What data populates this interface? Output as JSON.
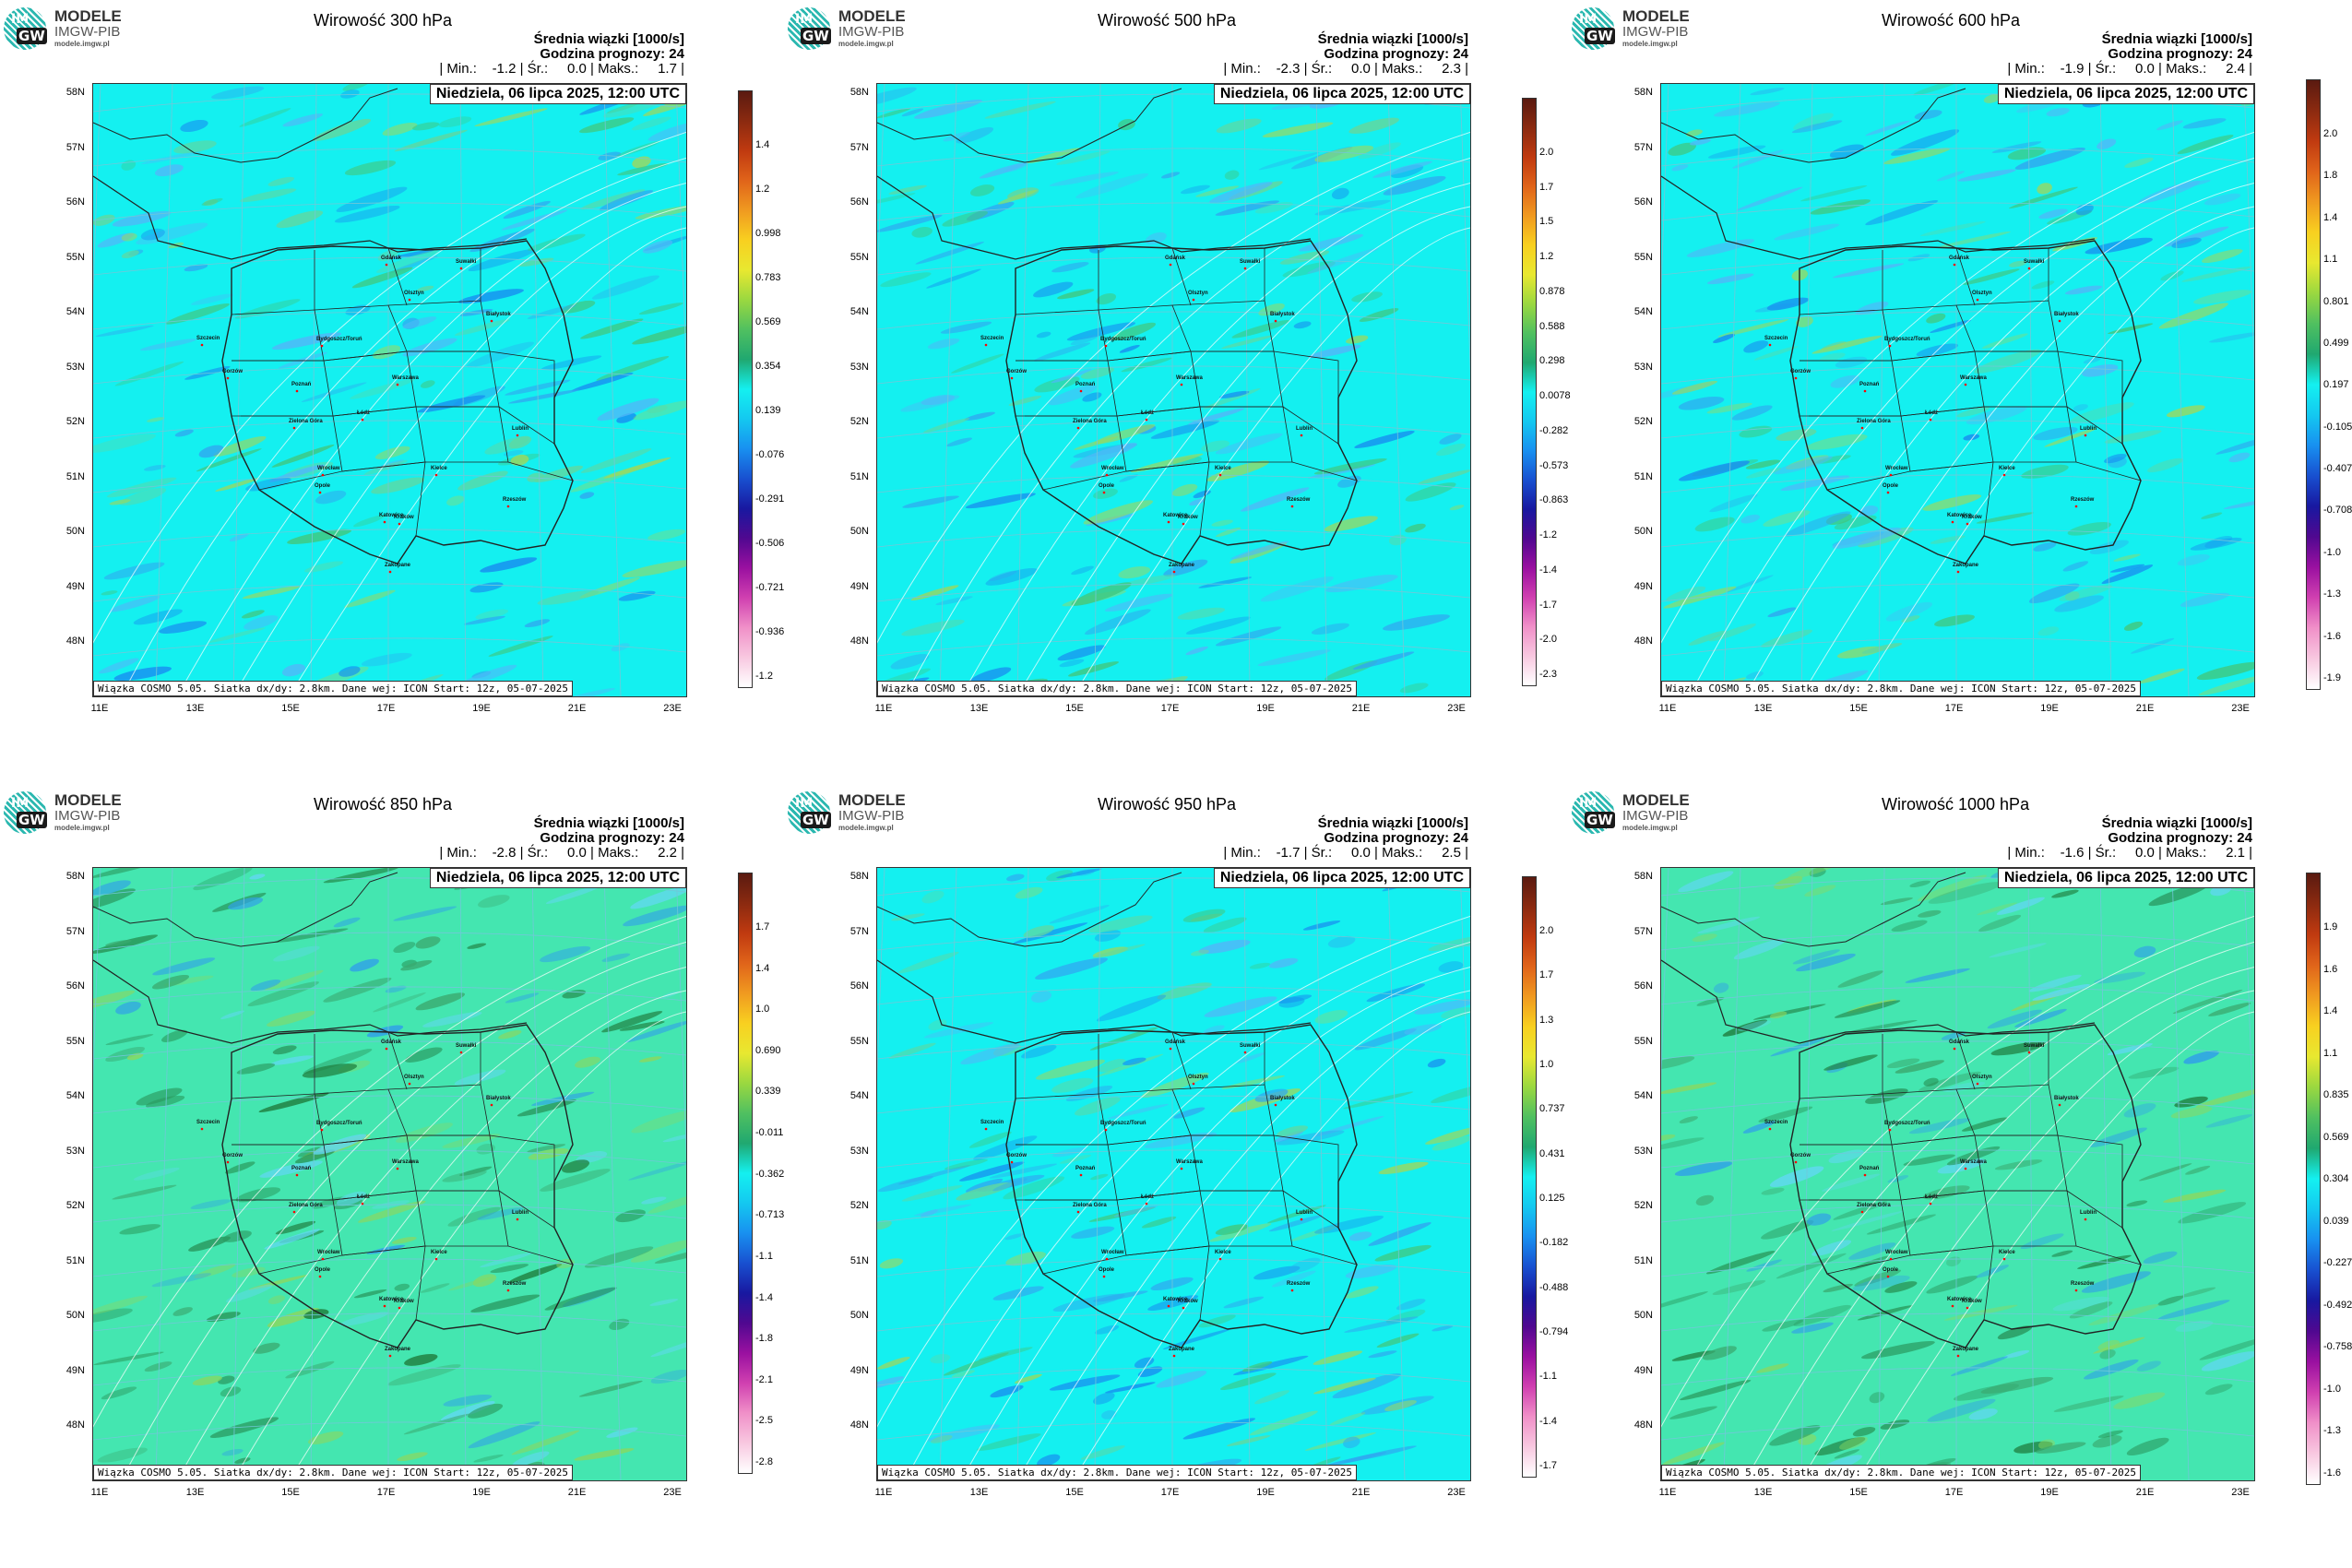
{
  "header": {
    "logo_line1": "MODELE",
    "logo_line2": "IMGW-PIB",
    "logo_line3": "modele.imgw.pl",
    "logo_mark_top": "IM",
    "logo_mark_bottom": "GW"
  },
  "common": {
    "subtitle": "Średnia wiązki [1000/s]",
    "forecast_hour": "Godzina prognozy: 24",
    "date": "Niedziela, 06 lipca 2025, 12:00 UTC",
    "footer": "Wiązka COSMO 5.05. Siatka dx/dy: 2.8km. Dane wej: ICON Start: 12z, 05-07-2025",
    "lat_labels": [
      "58N",
      "57N",
      "56N",
      "55N",
      "54N",
      "53N",
      "52N",
      "51N",
      "50N",
      "49N",
      "48N"
    ],
    "lon_labels": [
      "11E",
      "13E",
      "15E",
      "17E",
      "19E",
      "21E",
      "23E"
    ],
    "cities": [
      "Gdańsk",
      "Olsztyn",
      "Suwałki",
      "Szczecin",
      "Bydgoszcz/Toruń",
      "Białystok",
      "Gorzów",
      "Poznań",
      "Warszawa",
      "Zielona Góra",
      "Łódź",
      "Lublin",
      "Wrocław",
      "Kielce",
      "Opole",
      "Rzeszów",
      "Katowice",
      "Kraków",
      "Zakopane"
    ]
  },
  "panels": [
    {
      "title": "Wirowość 300 hPa",
      "stats": "| Min.:    -1.2 | Śr.:     0.0 | Maks.:     1.7 |",
      "colorbar": [
        "1.4",
        "1.2",
        "0.998",
        "0.783",
        "0.569",
        "0.354",
        "0.139",
        "-0.076",
        "-0.291",
        "-0.506",
        "-0.721",
        "-0.936",
        "-1.2"
      ],
      "background": "cyan"
    },
    {
      "title": "Wirowość 500 hPa",
      "stats": "| Min.:    -2.3 | Śr.:     0.0 | Maks.:     2.3 |",
      "colorbar": [
        "2.0",
        "1.7",
        "1.5",
        "1.2",
        "0.878",
        "0.588",
        "0.298",
        "0.0078",
        "-0.282",
        "-0.573",
        "-0.863",
        "-1.2",
        "-1.4",
        "-1.7",
        "-2.0",
        "-2.3"
      ],
      "background": "cyan"
    },
    {
      "title": "Wirowość 600 hPa",
      "stats": "| Min.:    -1.9 | Śr.:     0.0 | Maks.:     2.4 |",
      "colorbar": [
        "2.0",
        "1.8",
        "1.4",
        "1.1",
        "0.801",
        "0.499",
        "0.197",
        "-0.105",
        "-0.407",
        "-0.708",
        "-1.0",
        "-1.3",
        "-1.6",
        "-1.9"
      ],
      "background": "cyan"
    },
    {
      "title": "Wirowość 850 hPa",
      "stats": "| Min.:    -2.8 | Śr.:     0.0 | Maks.:     2.2 |",
      "colorbar": [
        "1.7",
        "1.4",
        "1.0",
        "0.690",
        "0.339",
        "-0.011",
        "-0.362",
        "-0.713",
        "-1.1",
        "-1.4",
        "-1.8",
        "-2.1",
        "-2.5",
        "-2.8"
      ],
      "background": "green"
    },
    {
      "title": "Wirowość 950 hPa",
      "stats": "| Min.:    -1.7 | Śr.:     0.0 | Maks.:     2.5 |",
      "colorbar": [
        "2.0",
        "1.7",
        "1.3",
        "1.0",
        "0.737",
        "0.431",
        "0.125",
        "-0.182",
        "-0.488",
        "-0.794",
        "-1.1",
        "-1.4",
        "-1.7"
      ],
      "background": "cyan"
    },
    {
      "title": "Wirowość 1000 hPa",
      "stats": "| Min.:    -1.6 | Śr.:     0.0 | Maks.:     2.1 |",
      "colorbar": [
        "1.9",
        "1.6",
        "1.4",
        "1.1",
        "0.835",
        "0.569",
        "0.304",
        "0.039",
        "-0.227",
        "-0.492",
        "-0.758",
        "-1.0",
        "-1.3",
        "-1.6"
      ],
      "background": "green"
    }
  ],
  "colors": {
    "cyan_bg": "#14f0f0",
    "green_bg": "#44e6b0",
    "border_lines": "#222222",
    "grid_lines": "#70c8d8"
  }
}
